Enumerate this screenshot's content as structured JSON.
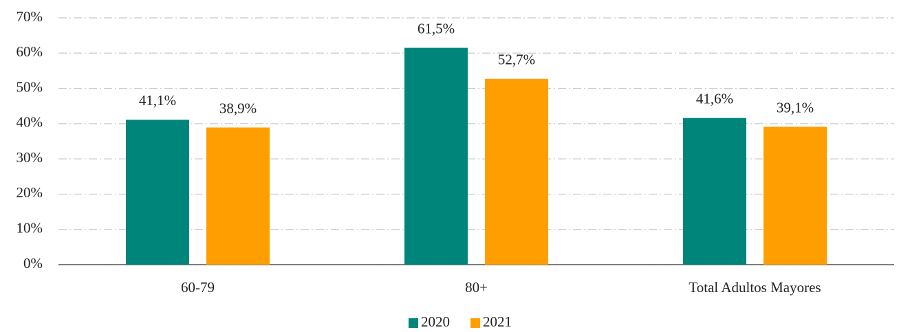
{
  "chart_data": {
    "type": "bar",
    "categories": [
      "60-79",
      "80+",
      "Total Adultos Mayores"
    ],
    "series": [
      {
        "name": "2020",
        "color": "#00857a",
        "values": [
          41.1,
          61.5,
          41.6
        ],
        "value_labels": [
          "41,1%",
          "61,5%",
          "41,6%"
        ]
      },
      {
        "name": "2021",
        "color": "#ff9e00",
        "values": [
          38.9,
          52.7,
          39.1
        ],
        "value_labels": [
          "38,9%",
          "52,7%",
          "39,1%"
        ]
      }
    ],
    "ylim": [
      0,
      70
    ],
    "yticks": [
      {
        "value": 0,
        "label": "0%"
      },
      {
        "value": 10,
        "label": "10%"
      },
      {
        "value": 20,
        "label": "20%"
      },
      {
        "value": 30,
        "label": "30%"
      },
      {
        "value": 40,
        "label": "40%"
      },
      {
        "value": 50,
        "label": "50%"
      },
      {
        "value": 60,
        "label": "60%"
      },
      {
        "value": 70,
        "label": "70%"
      }
    ],
    "grid": true,
    "legend": "bottom"
  }
}
